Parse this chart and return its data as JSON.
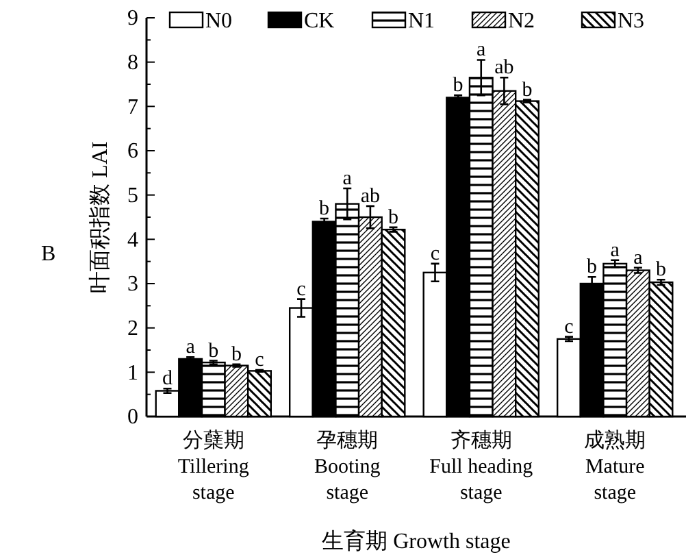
{
  "chart_data": {
    "type": "bar",
    "xlabel": "生育期 Growth stage",
    "ylabel": "叶面积指数 LAI",
    "categories": [
      "分蘖期\nTillering\nstage",
      "孕穗期\nBooting\nstage",
      "齐穗期\nFull heading\nstage",
      "成熟期\nMature\nstage"
    ],
    "series": [
      {
        "name": "N0",
        "color": "#ffffff",
        "values": [
          0.58,
          2.45,
          3.25,
          1.75
        ],
        "errors": [
          0.05,
          0.2,
          0.2,
          0.05
        ],
        "value_labels": [
          "d",
          "c",
          "c",
          "c"
        ]
      },
      {
        "name": "CK",
        "color": "#000000",
        "values": [
          1.3,
          4.4,
          7.2,
          3.0
        ],
        "errors": [
          0.04,
          0.07,
          0.05,
          0.15
        ],
        "value_labels": [
          "a",
          "b",
          "b",
          "b"
        ]
      },
      {
        "name": "N1",
        "color": "#000000",
        "values": [
          1.22,
          4.8,
          7.65,
          3.45
        ],
        "errors": [
          0.04,
          0.35,
          0.4,
          0.08
        ],
        "value_labels": [
          "b",
          "a",
          "a",
          "a"
        ]
      },
      {
        "name": "N2",
        "color": "#000000",
        "values": [
          1.15,
          4.5,
          7.35,
          3.3
        ],
        "errors": [
          0.03,
          0.25,
          0.3,
          0.06
        ],
        "value_labels": [
          "b",
          "ab",
          "ab",
          "a"
        ]
      },
      {
        "name": "N3",
        "color": "#000000",
        "values": [
          1.03,
          4.22,
          7.12,
          3.03
        ],
        "errors": [
          0.02,
          0.05,
          0.03,
          0.06
        ],
        "value_labels": [
          "c",
          "b",
          "b",
          "b"
        ]
      }
    ],
    "ylim": [
      0,
      9
    ],
    "yticks": [
      0,
      {
        "value": 0.5,
        "label": null
      },
      1,
      {
        "value": 1.5,
        "label": null
      },
      2,
      {
        "value": 2.5,
        "label": null
      },
      3,
      {
        "value": 3.5,
        "label": null
      },
      4,
      {
        "value": 4.5,
        "label": null
      },
      5,
      {
        "value": 5.5,
        "label": null
      },
      6,
      {
        "value": 6.5,
        "label": null
      },
      7,
      {
        "value": 7.5,
        "label": null
      },
      8,
      {
        "value": 8.5,
        "label": null
      },
      9
    ],
    "legend": "top",
    "grid": false,
    "annotations": [
      "B"
    ]
  }
}
